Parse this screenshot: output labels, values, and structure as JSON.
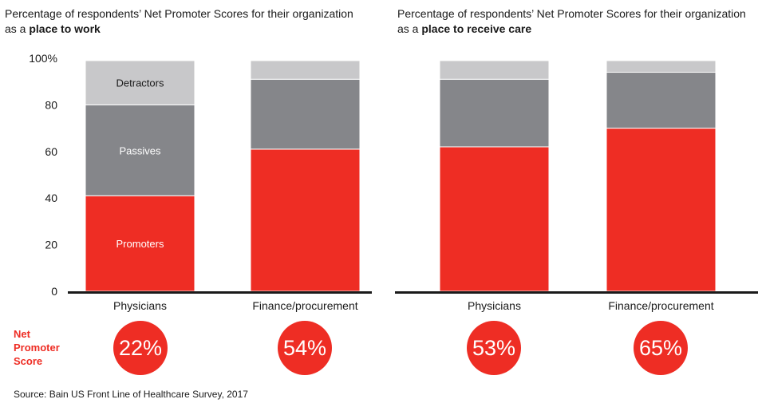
{
  "chart_data": [
    {
      "type": "bar",
      "stacked": true,
      "title_plain": "Percentage of respondents’ Net Promoter Scores for their organization as a ",
      "title_bold": "place to work",
      "categories": [
        "Physicians",
        "Finance/procurement"
      ],
      "series": [
        {
          "name": "Promoters",
          "values": [
            41,
            61
          ],
          "color": "#ee2d24"
        },
        {
          "name": "Passives",
          "values": [
            39,
            30
          ],
          "color": "#85868a"
        },
        {
          "name": "Detractors",
          "values": [
            19,
            8
          ],
          "color": "#c8c8ca"
        }
      ],
      "ylim": [
        0,
        100
      ],
      "yticks": [
        "0",
        "20",
        "40",
        "60",
        "80",
        "100%"
      ],
      "nps": [
        "22%",
        "54%"
      ]
    },
    {
      "type": "bar",
      "stacked": true,
      "title_plain": "Percentage of respondents’ Net Promoter Scores for their organization as a ",
      "title_bold": "place to receive care",
      "categories": [
        "Physicians",
        "Finance/procurement"
      ],
      "series": [
        {
          "name": "Promoters",
          "values": [
            62,
            70
          ],
          "color": "#ee2d24"
        },
        {
          "name": "Passives",
          "values": [
            29,
            24
          ],
          "color": "#85868a"
        },
        {
          "name": "Detractors",
          "values": [
            8,
            5
          ],
          "color": "#c8c8ca"
        }
      ],
      "ylim": [
        0,
        100
      ],
      "nps": [
        "53%",
        "65%"
      ]
    }
  ],
  "nps_label": [
    "Net",
    "Promoter",
    "Score"
  ],
  "source": "Source: Bain US Front Line of Healthcare Survey, 2017"
}
